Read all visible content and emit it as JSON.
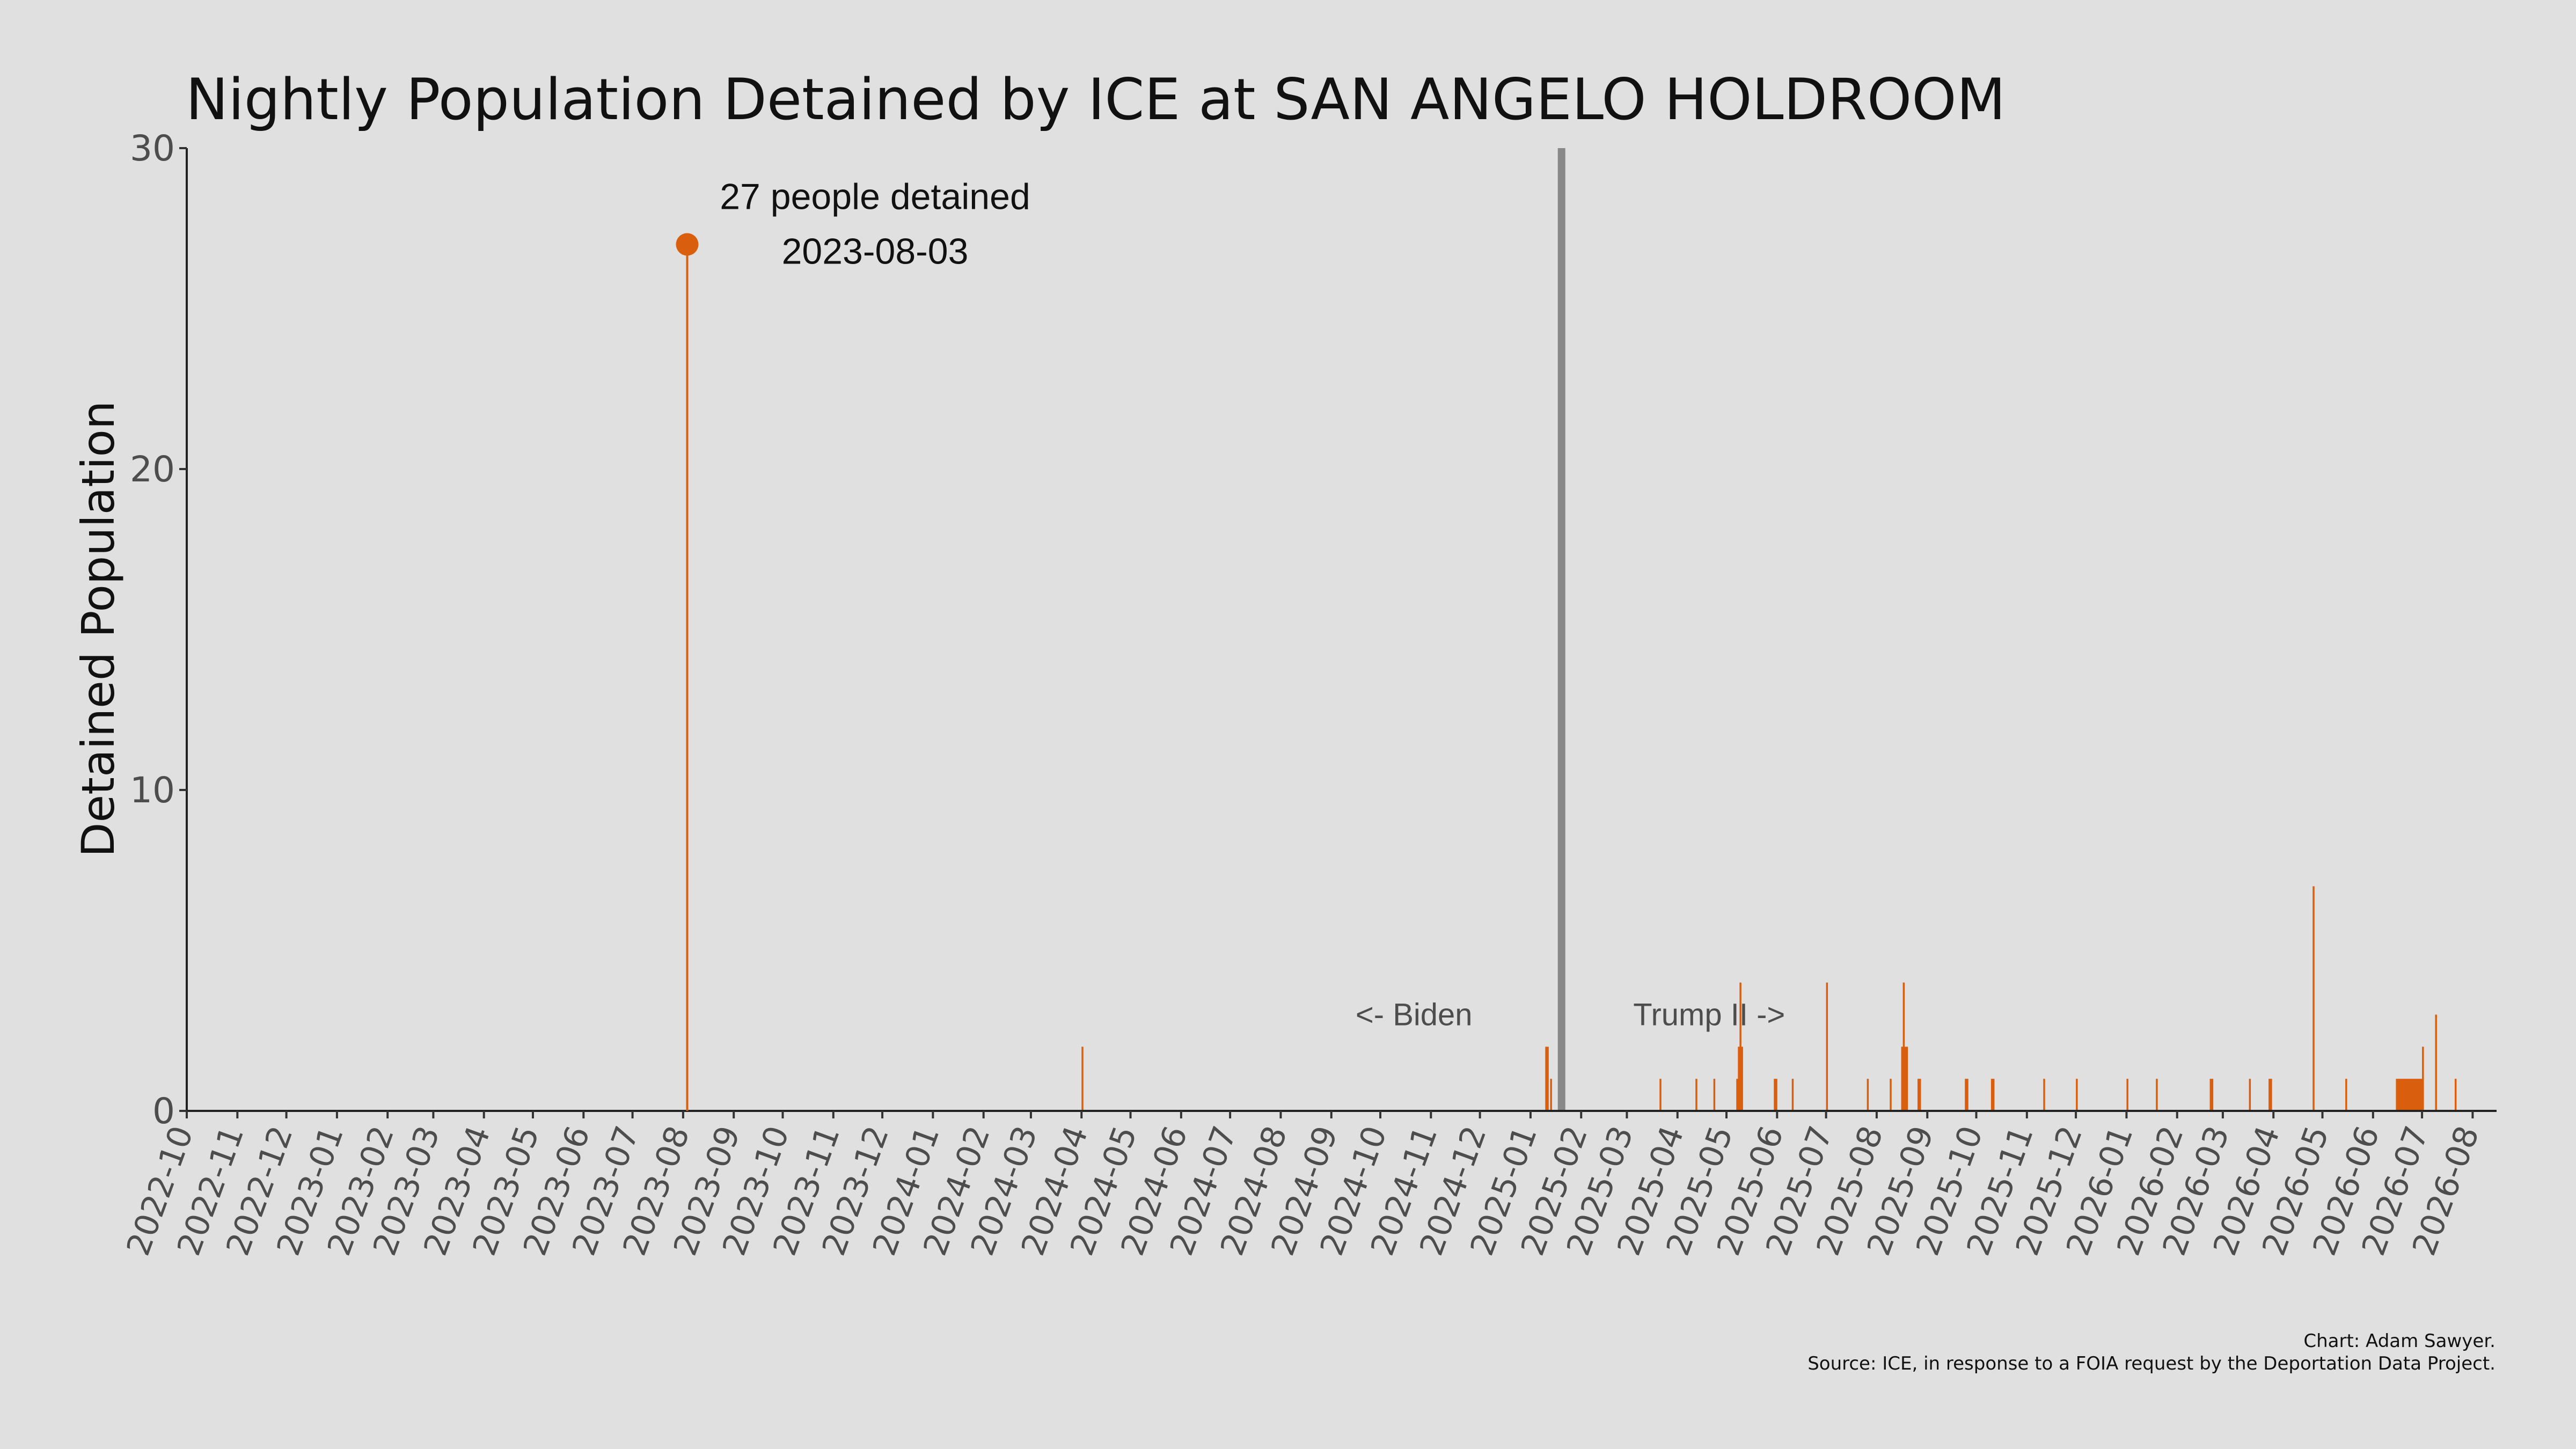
{
  "chart_data": {
    "type": "bar",
    "title": "Nightly Population Detained by ICE at SAN ANGELO HOLDROOM",
    "ylabel": "Detained Population",
    "xlabel": "",
    "ylim": [
      0,
      30
    ],
    "yticks": [
      "0",
      "10",
      "20",
      "30"
    ],
    "xlim": [
      "2022-10-01",
      "2026-08-15"
    ],
    "xticks": [
      "2022-10",
      "2022-11",
      "2022-12",
      "2023-01",
      "2023-02",
      "2023-03",
      "2023-04",
      "2023-05",
      "2023-06",
      "2023-07",
      "2023-08",
      "2023-09",
      "2023-10",
      "2023-11",
      "2023-12",
      "2024-01",
      "2024-02",
      "2024-03",
      "2024-04",
      "2024-05",
      "2024-06",
      "2024-07",
      "2024-08",
      "2024-09",
      "2024-10",
      "2024-11",
      "2024-12",
      "2025-01",
      "2025-02",
      "2025-03",
      "2025-04",
      "2025-05",
      "2025-06",
      "2025-07",
      "2025-08",
      "2025-09",
      "2025-10",
      "2025-11",
      "2025-12",
      "2026-01",
      "2026-02",
      "2026-03",
      "2026-04",
      "2026-05",
      "2026-06",
      "2026-07",
      "2026-08"
    ],
    "grid": false,
    "series": [
      {
        "color": "#d95f0e",
        "points": [
          {
            "date": "2023-08-03",
            "value": 27
          },
          {
            "date": "2024-04-01",
            "value": 2
          },
          {
            "date": "2025-01-10",
            "value": 2
          },
          {
            "date": "2025-01-11",
            "value": 2
          },
          {
            "date": "2025-01-13",
            "value": 1
          },
          {
            "date": "2025-03-21",
            "value": 1
          },
          {
            "date": "2025-04-12",
            "value": 1
          },
          {
            "date": "2025-04-23",
            "value": 1
          },
          {
            "date": "2025-05-07",
            "value": 1
          },
          {
            "date": "2025-05-08",
            "value": 2
          },
          {
            "date": "2025-05-09",
            "value": 4
          },
          {
            "date": "2025-05-10",
            "value": 2
          },
          {
            "date": "2025-05-30",
            "value": 1
          },
          {
            "date": "2025-05-31",
            "value": 1
          },
          {
            "date": "2025-06-10",
            "value": 1
          },
          {
            "date": "2025-07-01",
            "value": 4
          },
          {
            "date": "2025-07-26",
            "value": 1
          },
          {
            "date": "2025-08-09",
            "value": 1
          },
          {
            "date": "2025-08-16",
            "value": 2
          },
          {
            "date": "2025-08-17",
            "value": 4
          },
          {
            "date": "2025-08-18",
            "value": 2
          },
          {
            "date": "2025-08-19",
            "value": 2
          },
          {
            "date": "2025-08-26",
            "value": 1
          },
          {
            "date": "2025-08-27",
            "value": 1
          },
          {
            "date": "2025-09-24",
            "value": 1
          },
          {
            "date": "2025-09-25",
            "value": 1
          },
          {
            "date": "2025-10-10",
            "value": 1
          },
          {
            "date": "2025-10-11",
            "value": 1
          },
          {
            "date": "2025-11-11",
            "value": 1
          },
          {
            "date": "2025-12-01",
            "value": 1
          },
          {
            "date": "2026-01-01",
            "value": 1
          },
          {
            "date": "2026-01-19",
            "value": 1
          },
          {
            "date": "2026-02-21",
            "value": 1
          },
          {
            "date": "2026-02-22",
            "value": 1
          },
          {
            "date": "2026-03-17",
            "value": 1
          },
          {
            "date": "2026-03-29",
            "value": 1
          },
          {
            "date": "2026-03-30",
            "value": 1
          },
          {
            "date": "2026-04-25",
            "value": 7
          },
          {
            "date": "2026-05-15",
            "value": 1
          },
          {
            "date": "2026-06-15",
            "value": 1
          },
          {
            "date": "2026-06-16",
            "value": 1
          },
          {
            "date": "2026-06-17",
            "value": 1
          },
          {
            "date": "2026-06-18",
            "value": 1
          },
          {
            "date": "2026-06-19",
            "value": 1
          },
          {
            "date": "2026-06-20",
            "value": 1
          },
          {
            "date": "2026-06-21",
            "value": 1
          },
          {
            "date": "2026-06-22",
            "value": 1
          },
          {
            "date": "2026-06-23",
            "value": 1
          },
          {
            "date": "2026-06-24",
            "value": 1
          },
          {
            "date": "2026-06-25",
            "value": 1
          },
          {
            "date": "2026-06-26",
            "value": 1
          },
          {
            "date": "2026-06-27",
            "value": 1
          },
          {
            "date": "2026-06-28",
            "value": 1
          },
          {
            "date": "2026-06-29",
            "value": 1
          },
          {
            "date": "2026-06-30",
            "value": 1
          },
          {
            "date": "2026-07-01",
            "value": 2
          },
          {
            "date": "2026-07-09",
            "value": 3
          },
          {
            "date": "2026-07-21",
            "value": 1
          }
        ]
      }
    ],
    "peak": {
      "date": "2023-08-03",
      "value": 27,
      "label_line1": "27 people detained",
      "label_line2": "2023-08-03"
    },
    "divider": {
      "date": "2025-01-20",
      "color": "#888888"
    },
    "era_left_label": "<- Biden",
    "era_right_label": "Trump II ->",
    "caption_line1": "Chart: Adam Sawyer.",
    "caption_line2": "Source: ICE, in response to a FOIA request by the Deportation Data Project."
  }
}
